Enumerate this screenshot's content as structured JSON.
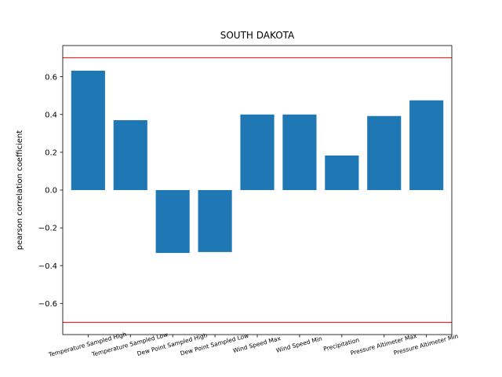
{
  "chart_data": {
    "type": "bar",
    "title": "SOUTH DAKOTA",
    "xlabel": "",
    "ylabel": "pearson correlation coefficient",
    "categories": [
      "Temperature Sampled High",
      "Temperature Sampled Low",
      "Dew Point Sampled High",
      "Dew Point Sampled Low",
      "Wind Speed Max",
      "Wind Speed Min",
      "Precipitation",
      "Pressure Altimeter Max",
      "Pressure Altimeter Min"
    ],
    "values": [
      0.632,
      0.37,
      -0.333,
      -0.328,
      0.4,
      0.4,
      0.183,
      0.392,
      0.475
    ],
    "ylim": [
      -0.765,
      0.765
    ],
    "yticks": [
      -0.6,
      -0.4,
      -0.2,
      0.0,
      0.2,
      0.4,
      0.6
    ],
    "ytick_labels": [
      "−0.6",
      "−0.4",
      "−0.2",
      "0.0",
      "0.2",
      "0.4",
      "0.6"
    ],
    "reference_lines": [
      0.7,
      -0.7
    ],
    "grid": false,
    "legend": "none",
    "bar_color": "#1f77b4",
    "reference_line_color": "#ff0000"
  }
}
